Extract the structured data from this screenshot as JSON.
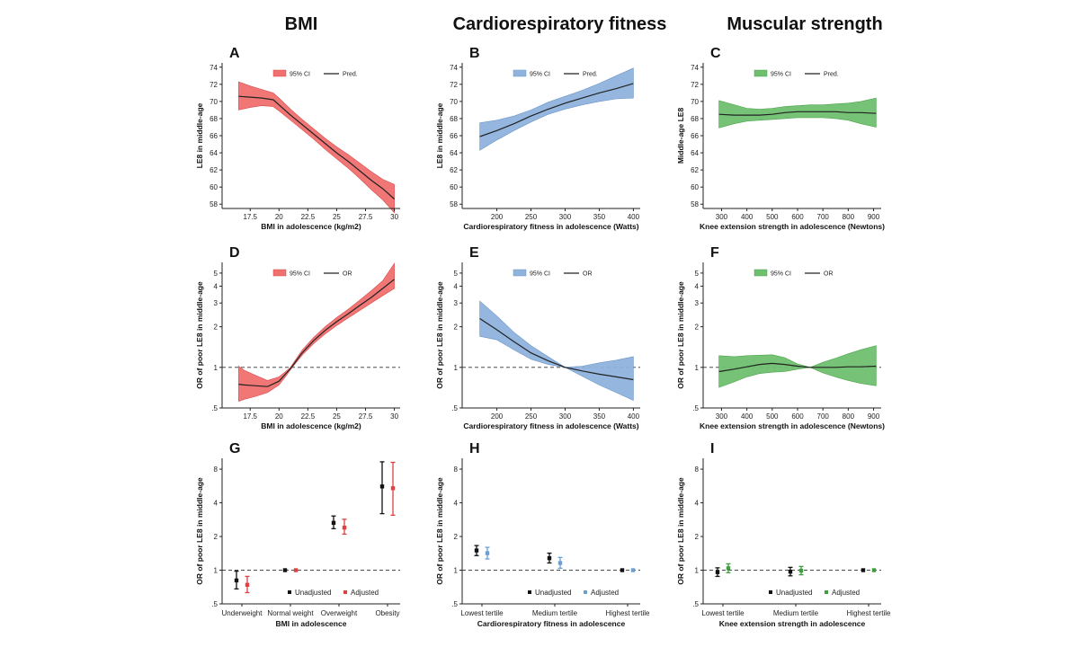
{
  "column_titles": [
    "BMI",
    "Cardiorespiratory fitness",
    "Muscular strength"
  ],
  "colors": {
    "red": "#f07070",
    "blue": "#8fb3dd",
    "green": "#6fbf6f",
    "line": "#222222"
  },
  "chart_data": [
    {
      "id": "A",
      "panel_label": "A",
      "type": "line",
      "style": "band",
      "color": "red",
      "xlabel": "BMI in adolescence (kg/m2)",
      "ylabel": "LE8 in middle-age",
      "xlim": [
        16,
        30.5
      ],
      "xticks": [
        17.5,
        20,
        22.5,
        25,
        27.5,
        30
      ],
      "xtick_labels": [
        "17.5",
        "20",
        "22.5",
        "25",
        "27.5",
        "30"
      ],
      "ylim": [
        57.5,
        74.5
      ],
      "yscale": "linear",
      "yticks": [
        58,
        60,
        62,
        64,
        66,
        68,
        70,
        72,
        74
      ],
      "ytick_labels": [
        "58",
        "60",
        "62",
        "64",
        "66",
        "68",
        "70",
        "72",
        "74"
      ],
      "legend": [
        "95% CI",
        "Pred."
      ],
      "ref_line": null,
      "x": [
        16.5,
        17.5,
        18.5,
        19.5,
        20,
        21,
        22,
        23,
        24,
        25,
        26,
        27,
        28,
        29,
        30
      ],
      "pred": [
        70.6,
        70.5,
        70.4,
        70.2,
        69.6,
        68.4,
        67.3,
        66.2,
        65.1,
        64.0,
        63.0,
        61.9,
        60.8,
        59.8,
        58.6
      ],
      "lower": [
        69.0,
        69.3,
        69.5,
        69.4,
        68.9,
        67.8,
        66.7,
        65.6,
        64.4,
        63.3,
        62.2,
        61.0,
        59.7,
        58.5,
        57.0
      ],
      "upper": [
        72.3,
        71.8,
        71.4,
        71.0,
        70.4,
        69.1,
        67.9,
        66.8,
        65.7,
        64.7,
        63.8,
        62.8,
        61.8,
        60.9,
        60.3
      ]
    },
    {
      "id": "B",
      "panel_label": "B",
      "type": "line",
      "style": "band",
      "color": "blue",
      "xlabel": "Cardiorespiratory fitness in adolescence (Watts)",
      "ylabel": "LE8 in middle-age",
      "xlim": [
        165,
        410
      ],
      "xticks": [
        200,
        250,
        300,
        350,
        400
      ],
      "xtick_labels": [
        "200",
        "250",
        "300",
        "350",
        "400"
      ],
      "ylim": [
        57.5,
        74.5
      ],
      "yscale": "linear",
      "yticks": [
        58,
        60,
        62,
        64,
        66,
        68,
        70,
        72,
        74
      ],
      "ytick_labels": [
        "58",
        "60",
        "62",
        "64",
        "66",
        "68",
        "70",
        "72",
        "74"
      ],
      "legend": [
        "95% CI",
        "Pred."
      ],
      "ref_line": null,
      "x": [
        175,
        200,
        225,
        250,
        275,
        300,
        325,
        350,
        375,
        400
      ],
      "pred": [
        65.9,
        66.6,
        67.4,
        68.3,
        69.1,
        69.8,
        70.4,
        71.0,
        71.5,
        72.1
      ],
      "lower": [
        64.3,
        65.5,
        66.6,
        67.6,
        68.5,
        69.1,
        69.6,
        70.0,
        70.3,
        70.4
      ],
      "upper": [
        67.5,
        67.8,
        68.3,
        69.0,
        69.9,
        70.6,
        71.3,
        72.1,
        73.0,
        73.9
      ]
    },
    {
      "id": "C",
      "panel_label": "C",
      "type": "line",
      "style": "band",
      "color": "green",
      "xlabel": "Knee extension strength in adolescence (Newtons)",
      "ylabel": "Middle-age LE8",
      "xlim": [
        270,
        930
      ],
      "xticks": [
        300,
        400,
        500,
        600,
        700,
        800,
        900
      ],
      "xtick_labels": [
        "300",
        "400",
        "500",
        "600",
        "700",
        "800",
        "900"
      ],
      "ylim": [
        57.5,
        74.5
      ],
      "yscale": "linear",
      "yticks": [
        58,
        60,
        62,
        64,
        66,
        68,
        70,
        72,
        74
      ],
      "ytick_labels": [
        "58",
        "60",
        "62",
        "64",
        "66",
        "68",
        "70",
        "72",
        "74"
      ],
      "legend": [
        "95% CI",
        "Pred."
      ],
      "ref_line": null,
      "x": [
        290,
        350,
        400,
        450,
        500,
        550,
        600,
        650,
        700,
        750,
        800,
        850,
        910
      ],
      "pred": [
        68.5,
        68.4,
        68.4,
        68.4,
        68.5,
        68.7,
        68.8,
        68.8,
        68.8,
        68.8,
        68.7,
        68.7,
        68.6
      ],
      "lower": [
        66.9,
        67.4,
        67.7,
        67.8,
        67.9,
        68.0,
        68.1,
        68.1,
        68.1,
        68.0,
        67.8,
        67.4,
        67.0
      ],
      "upper": [
        70.1,
        69.6,
        69.2,
        69.1,
        69.2,
        69.4,
        69.5,
        69.6,
        69.6,
        69.7,
        69.8,
        70.0,
        70.4
      ]
    },
    {
      "id": "D",
      "panel_label": "D",
      "type": "line",
      "style": "band",
      "color": "red",
      "xlabel": "BMI in adolescence (kg/m2)",
      "ylabel": "OR of poor LE8 in middle-age",
      "xlim": [
        16,
        30.5
      ],
      "xticks": [
        17.5,
        20,
        22.5,
        25,
        27.5,
        30
      ],
      "xtick_labels": [
        "17.5",
        "20",
        "22.5",
        "25",
        "27.5",
        "30"
      ],
      "ylim": [
        0.5,
        6
      ],
      "yscale": "log",
      "yticks": [
        0.5,
        1,
        2,
        3,
        4,
        5
      ],
      "ytick_labels": [
        ".5",
        "1",
        "2",
        "3",
        "4",
        "5"
      ],
      "legend": [
        "95% CI",
        "OR"
      ],
      "ref_line": 1,
      "x": [
        16.5,
        17,
        18,
        19,
        20,
        20.5,
        21,
        21.5,
        22,
        23,
        24,
        25,
        26,
        27,
        28,
        29,
        30
      ],
      "pred": [
        0.75,
        0.74,
        0.73,
        0.72,
        0.79,
        0.88,
        0.98,
        1.12,
        1.28,
        1.58,
        1.88,
        2.18,
        2.5,
        2.88,
        3.3,
        3.85,
        4.5
      ],
      "lower": [
        0.56,
        0.58,
        0.61,
        0.65,
        0.74,
        0.84,
        0.96,
        1.09,
        1.23,
        1.5,
        1.77,
        2.04,
        2.33,
        2.64,
        3.0,
        3.4,
        3.85
      ],
      "upper": [
        1.02,
        0.95,
        0.87,
        0.8,
        0.85,
        0.92,
        1.0,
        1.16,
        1.34,
        1.67,
        2.0,
        2.34,
        2.7,
        3.15,
        3.7,
        4.4,
        5.9
      ]
    },
    {
      "id": "E",
      "panel_label": "E",
      "type": "line",
      "style": "band",
      "color": "blue",
      "xlabel": "Cardiorespiratory fitness in adolescence (Watts)",
      "ylabel": "OR of poor LE8 in middle-age",
      "xlim": [
        165,
        410
      ],
      "xticks": [
        200,
        250,
        300,
        350,
        400
      ],
      "xtick_labels": [
        "200",
        "250",
        "300",
        "350",
        "400"
      ],
      "ylim": [
        0.5,
        6
      ],
      "yscale": "log",
      "yticks": [
        0.5,
        1,
        2,
        3,
        4,
        5
      ],
      "ytick_labels": [
        ".5",
        "1",
        "2",
        "3",
        "4",
        "5"
      ],
      "legend": [
        "95% CI",
        "OR"
      ],
      "ref_line": 1,
      "x": [
        175,
        200,
        225,
        250,
        275,
        300,
        325,
        350,
        375,
        400
      ],
      "pred": [
        2.3,
        1.9,
        1.55,
        1.28,
        1.12,
        1.0,
        0.94,
        0.89,
        0.85,
        0.81
      ],
      "lower": [
        1.7,
        1.6,
        1.35,
        1.15,
        1.05,
        1.0,
        0.86,
        0.74,
        0.65,
        0.57
      ],
      "upper": [
        3.1,
        2.4,
        1.82,
        1.45,
        1.2,
        1.0,
        1.02,
        1.08,
        1.13,
        1.2
      ]
    },
    {
      "id": "F",
      "panel_label": "F",
      "type": "line",
      "style": "band",
      "color": "green",
      "xlabel": "Knee extension strength in adolescence (Newtons)",
      "ylabel": "OR of poor LE8 in middle-age",
      "xlim": [
        270,
        930
      ],
      "xticks": [
        300,
        400,
        500,
        600,
        700,
        800,
        900
      ],
      "xtick_labels": [
        "300",
        "400",
        "500",
        "600",
        "700",
        "800",
        "900"
      ],
      "ylim": [
        0.5,
        6
      ],
      "yscale": "log",
      "yticks": [
        0.5,
        1,
        2,
        3,
        4,
        5
      ],
      "ytick_labels": [
        ".5",
        "1",
        "2",
        "3",
        "4",
        "5"
      ],
      "legend": [
        "95% CI",
        "OR"
      ],
      "ref_line": 1,
      "x": [
        290,
        350,
        400,
        450,
        500,
        550,
        600,
        650,
        700,
        750,
        800,
        850,
        910
      ],
      "pred": [
        0.93,
        0.97,
        1.01,
        1.05,
        1.07,
        1.05,
        1.02,
        1.0,
        1.0,
        1.0,
        1.01,
        1.01,
        1.02
      ],
      "lower": [
        0.71,
        0.78,
        0.85,
        0.9,
        0.92,
        0.93,
        0.97,
        1.0,
        0.91,
        0.85,
        0.8,
        0.76,
        0.73
      ],
      "upper": [
        1.22,
        1.2,
        1.22,
        1.23,
        1.24,
        1.18,
        1.06,
        1.0,
        1.09,
        1.17,
        1.26,
        1.35,
        1.45
      ]
    },
    {
      "id": "G",
      "panel_label": "G",
      "type": "scatter",
      "style": "errorbar",
      "color": "red",
      "xlabel": "BMI in adolescence",
      "ylabel": "OR of poor LE8 in middle-age",
      "categories": [
        "Underweight",
        "Normal weight",
        "Overweight",
        "Obesity"
      ],
      "ylim": [
        0.5,
        10
      ],
      "yscale": "log",
      "yticks": [
        0.5,
        1,
        2,
        4,
        8
      ],
      "ytick_labels": [
        ".5",
        "1",
        "2",
        "4",
        "8"
      ],
      "legend": [
        "Unadjusted",
        "Adjusted"
      ],
      "ref_line": 1,
      "series": [
        {
          "name": "Unadjusted",
          "values": [
            0.81,
            1.0,
            2.65,
            5.6
          ],
          "lower": [
            0.68,
            1.0,
            2.35,
            3.2
          ],
          "upper": [
            0.98,
            1.0,
            3.05,
            9.3
          ]
        },
        {
          "name": "Adjusted",
          "values": [
            0.74,
            1.0,
            2.4,
            5.4
          ],
          "lower": [
            0.63,
            1.0,
            2.1,
            3.1
          ],
          "upper": [
            0.88,
            1.0,
            2.85,
            9.2
          ]
        }
      ]
    },
    {
      "id": "H",
      "panel_label": "H",
      "type": "scatter",
      "style": "errorbar",
      "color": "blue",
      "xlabel": "Cardiorespiratory fitness in adolescence",
      "ylabel": "OR of poor LE8 in middle-age",
      "categories": [
        "Lowest tertile",
        "Medium tertile",
        "Highest tertile"
      ],
      "ylim": [
        0.5,
        10
      ],
      "yscale": "log",
      "yticks": [
        0.5,
        1,
        2,
        4,
        8
      ],
      "ytick_labels": [
        ".5",
        "1",
        "2",
        "4",
        "8"
      ],
      "legend": [
        "Unadjusted",
        "Adjusted"
      ],
      "ref_line": 1,
      "series": [
        {
          "name": "Unadjusted",
          "values": [
            1.5,
            1.28,
            1.0
          ],
          "lower": [
            1.35,
            1.16,
            1.0
          ],
          "upper": [
            1.66,
            1.42,
            1.0
          ]
        },
        {
          "name": "Adjusted",
          "values": [
            1.42,
            1.16,
            1.0
          ],
          "lower": [
            1.26,
            1.04,
            1.0
          ],
          "upper": [
            1.6,
            1.3,
            1.0
          ]
        }
      ]
    },
    {
      "id": "I",
      "panel_label": "I",
      "type": "scatter",
      "style": "errorbar",
      "color": "green",
      "xlabel": "Knee extension strength in adolescence",
      "ylabel": "OR of poor LE8 in middle-age",
      "categories": [
        "Lowest tertile",
        "Medium tertile",
        "Highest tertile"
      ],
      "ylim": [
        0.5,
        10
      ],
      "yscale": "log",
      "yticks": [
        0.5,
        1,
        2,
        4,
        8
      ],
      "ytick_labels": [
        ".5",
        "1",
        "2",
        "4",
        "8"
      ],
      "legend": [
        "Unadjusted",
        "Adjusted"
      ],
      "ref_line": 1,
      "series": [
        {
          "name": "Unadjusted",
          "values": [
            0.96,
            0.97,
            1.0
          ],
          "lower": [
            0.88,
            0.89,
            1.0
          ],
          "upper": [
            1.05,
            1.06,
            1.0
          ]
        },
        {
          "name": "Adjusted",
          "values": [
            1.04,
            0.99,
            1.0
          ],
          "lower": [
            0.95,
            0.91,
            1.0
          ],
          "upper": [
            1.14,
            1.08,
            1.0
          ]
        }
      ]
    }
  ]
}
